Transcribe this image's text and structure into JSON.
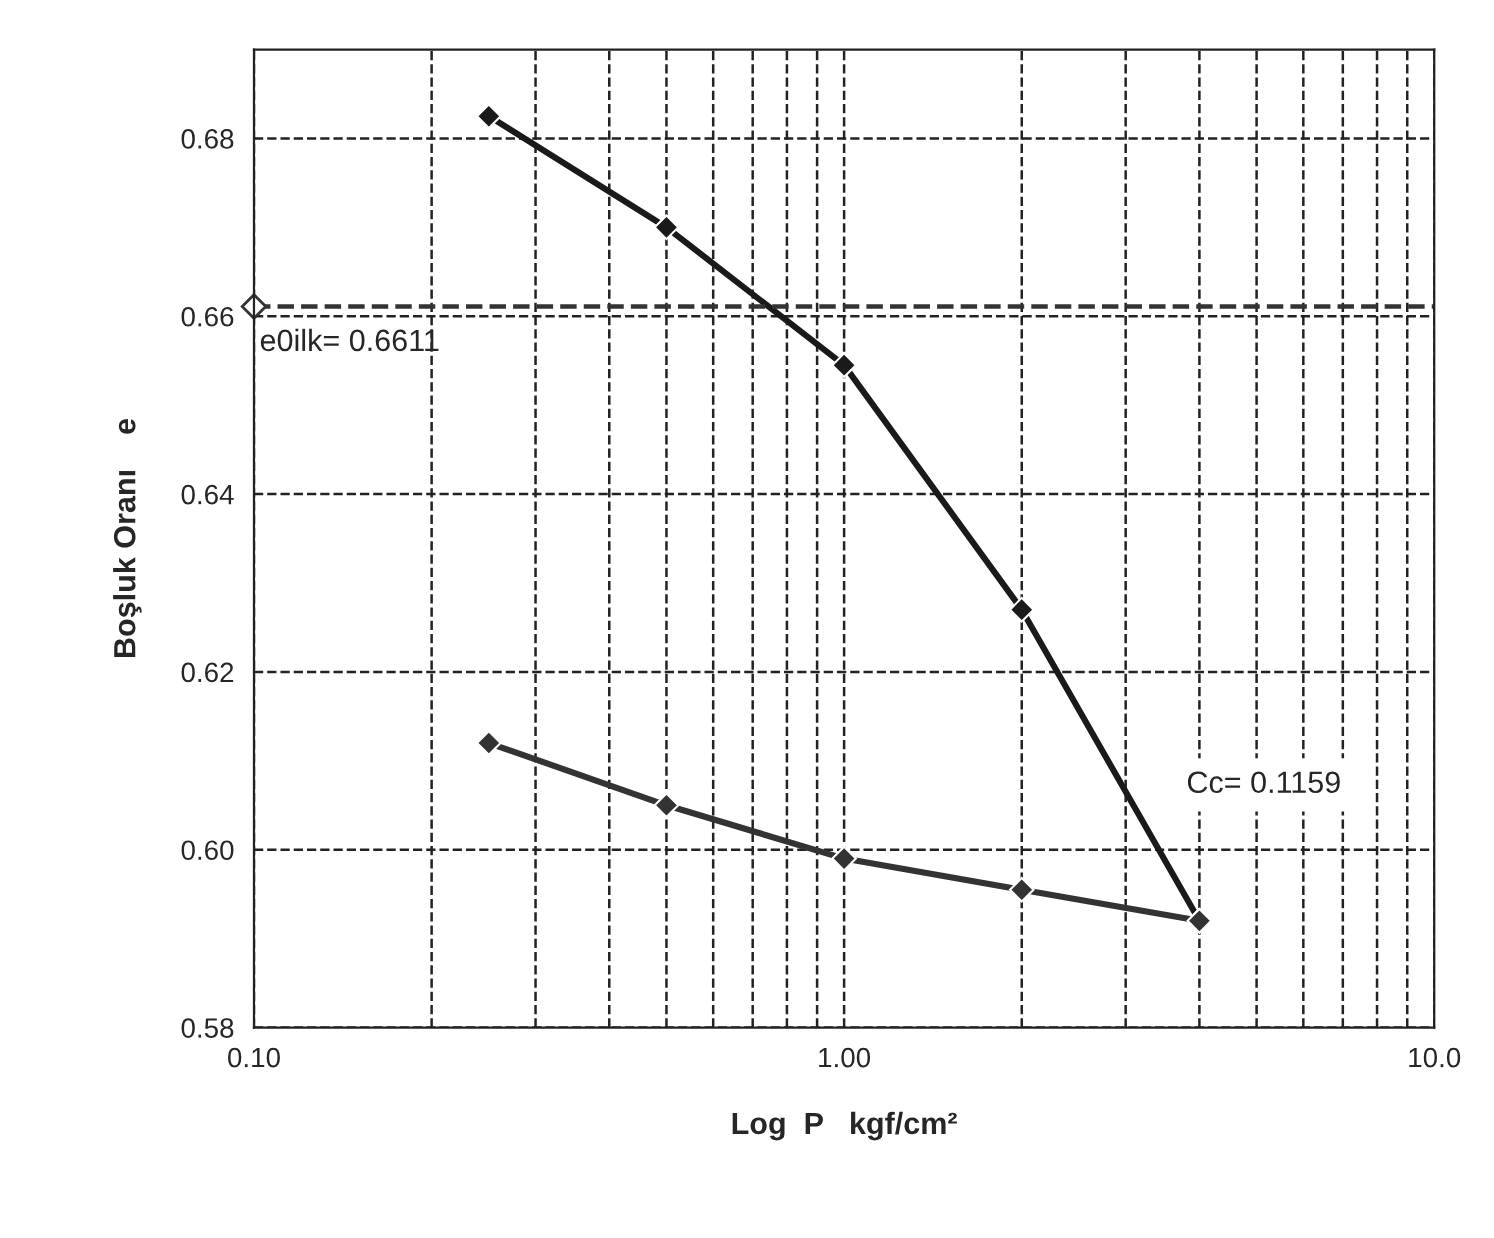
{
  "chart_data": {
    "type": "line",
    "xlabel": "Log  P   kgf/cm²",
    "ylabel": "Boşluk Oranı    e",
    "log": "x",
    "grid": true,
    "marker": "diamond",
    "xlim": [
      0.1,
      10
    ],
    "ylim": [
      0.58,
      0.69
    ],
    "xticks": [
      {
        "value": 0.1,
        "label": "0.10"
      },
      {
        "value": 0.2,
        "label": null
      },
      {
        "value": 0.3,
        "label": null
      },
      {
        "value": 0.4,
        "label": null
      },
      {
        "value": 0.5,
        "label": null
      },
      {
        "value": 0.6,
        "label": null
      },
      {
        "value": 0.7,
        "label": null
      },
      {
        "value": 0.8,
        "label": null
      },
      {
        "value": 0.9,
        "label": null
      },
      {
        "value": 1,
        "label": "1.00"
      },
      {
        "value": 2,
        "label": null
      },
      {
        "value": 3,
        "label": null
      },
      {
        "value": 4,
        "label": null
      },
      {
        "value": 5,
        "label": null
      },
      {
        "value": 6,
        "label": null
      },
      {
        "value": 7,
        "label": null
      },
      {
        "value": 8,
        "label": null
      },
      {
        "value": 9,
        "label": null
      },
      {
        "value": 10,
        "label": "10.0"
      }
    ],
    "yticks": [
      {
        "value": 0.58,
        "label": "0.58"
      },
      {
        "value": 0.6,
        "label": "0.60"
      },
      {
        "value": 0.62,
        "label": "0.62"
      },
      {
        "value": 0.64,
        "label": "0.64"
      },
      {
        "value": 0.66,
        "label": "0.66"
      },
      {
        "value": 0.68,
        "label": "0.68"
      }
    ],
    "series": [
      {
        "color": "#1a1a1a",
        "x": [
          0.25,
          0.5,
          1,
          2,
          4
        ],
        "values": [
          0.6825,
          0.67,
          0.6545,
          0.627,
          0.592
        ]
      },
      {
        "color": "#333333",
        "x": [
          4,
          2,
          1,
          0.5,
          0.25
        ],
        "values": [
          0.592,
          0.5955,
          0.599,
          0.605,
          0.612
        ]
      }
    ],
    "ref_lines": [
      {
        "axis": "y",
        "value": 0.6611,
        "label": "e0ilk= 0.6611",
        "line_style": "dashed",
        "color": "#333333"
      }
    ],
    "annotations": [
      "Cc= 0.1159"
    ]
  }
}
